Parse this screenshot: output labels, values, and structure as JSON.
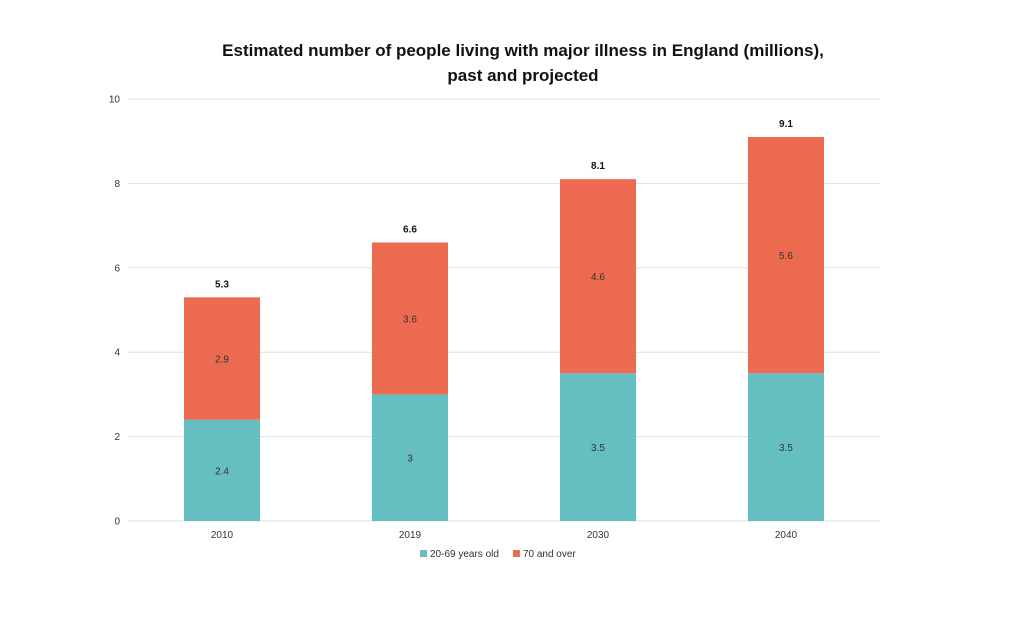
{
  "chart_data": {
    "type": "bar",
    "stacked": true,
    "title_lines": [
      "Estimated number of people living with major illness in England (millions),",
      "past and projected"
    ],
    "categories": [
      "2010",
      "2019",
      "2030",
      "2040"
    ],
    "series": [
      {
        "name": "20-69 years old",
        "values": [
          2.4,
          3,
          3.5,
          3.5
        ],
        "labels": [
          "2.4",
          "3",
          "3.5",
          "3.5"
        ],
        "color": "#65bfc1"
      },
      {
        "name": "70 and over",
        "values": [
          2.9,
          3.6,
          4.6,
          5.6
        ],
        "labels": [
          "2.9",
          "3.6",
          "4.6",
          "5.6"
        ],
        "color": "#ec6a50"
      }
    ],
    "totals": [
      "5.3",
      "6.6",
      "8.1",
      "9.1"
    ],
    "ylim": [
      0,
      10
    ],
    "yticks": [
      "0",
      "2",
      "4",
      "6",
      "8",
      "10"
    ],
    "grid": true,
    "gridline_color": "#e2e2e2",
    "legend_position": "bottom"
  }
}
